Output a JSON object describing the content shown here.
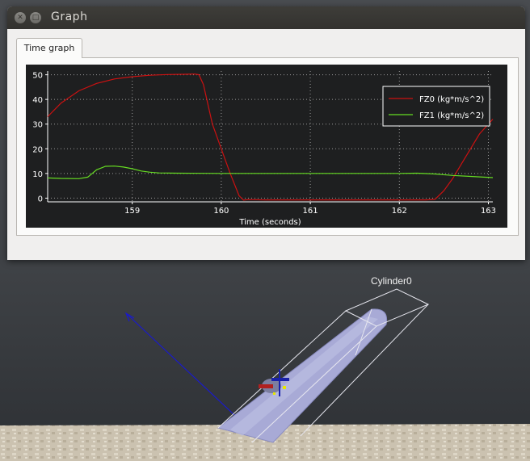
{
  "window": {
    "title": "Graph"
  },
  "tabs": [
    {
      "label": "Time graph",
      "active": true
    }
  ],
  "scene": {
    "object_label": "Cylinder0"
  },
  "colors": {
    "plot_bg": "#1e1f20",
    "fz0": "#cc1111",
    "fz1": "#66dd22"
  },
  "chart_data": {
    "type": "line",
    "title": "",
    "xlabel": "Time (seconds)",
    "ylabel": "",
    "xlim": [
      158.05,
      163.05
    ],
    "ylim": [
      -1.5,
      51.5
    ],
    "xticks": [
      159,
      160,
      161,
      162,
      163
    ],
    "yticks": [
      0,
      10,
      20,
      30,
      40,
      50
    ],
    "grid": true,
    "legend_position": "top-right",
    "series": [
      {
        "name": "FZ0 (kg*m/s^2)",
        "color": "#cc1111",
        "x": [
          158.05,
          158.2,
          158.4,
          158.6,
          158.8,
          159.0,
          159.2,
          159.4,
          159.6,
          159.7,
          159.75,
          159.8,
          159.9,
          160.0,
          160.1,
          160.2,
          160.25,
          160.3,
          160.5,
          161.0,
          161.5,
          162.0,
          162.3,
          162.4,
          162.5,
          162.6,
          162.7,
          162.8,
          162.9,
          163.05
        ],
        "y": [
          33,
          38.5,
          43.5,
          46.5,
          48.3,
          49.2,
          49.8,
          50.1,
          50.2,
          50.3,
          50,
          46,
          30,
          20,
          10,
          1,
          -0.8,
          -0.6,
          -0.7,
          -0.7,
          -0.7,
          -0.7,
          -0.7,
          -0.5,
          3,
          8,
          14,
          20,
          26,
          32
        ]
      },
      {
        "name": "FZ1 (kg*m/s^2)",
        "color": "#66dd22",
        "x": [
          158.05,
          158.2,
          158.4,
          158.5,
          158.6,
          158.7,
          158.8,
          158.9,
          159.0,
          159.1,
          159.2,
          159.3,
          159.5,
          160.0,
          160.5,
          161.0,
          161.5,
          162.0,
          162.2,
          162.4,
          162.6,
          162.8,
          163.05
        ],
        "y": [
          8.2,
          8.0,
          7.9,
          8.5,
          11.5,
          12.9,
          13.0,
          12.6,
          11.9,
          11.0,
          10.5,
          10.2,
          10.1,
          10.0,
          10.0,
          10.0,
          10.0,
          10.0,
          10.1,
          9.8,
          9.2,
          8.8,
          8.3
        ]
      }
    ]
  }
}
